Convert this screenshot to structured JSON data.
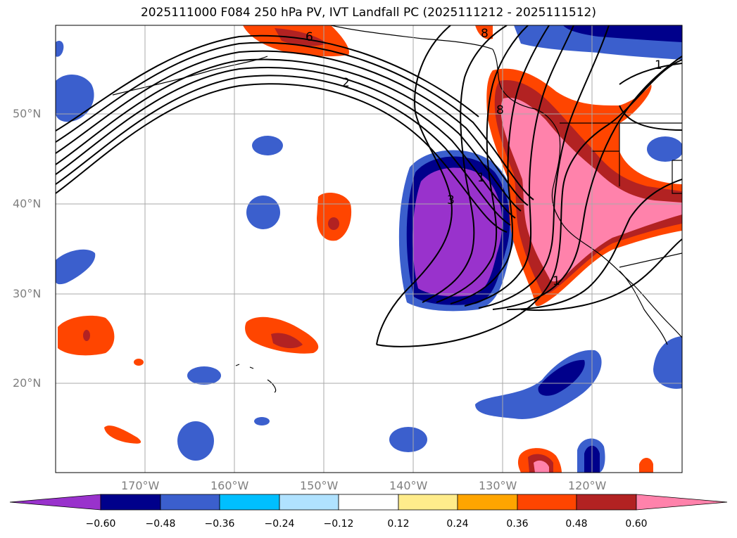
{
  "title": "2025111000 F084 250 hPa PV, IVT Landfall PC (2025111212 - 2025111512)",
  "latitude_labels": [
    "50°N",
    "40°N",
    "30°N",
    "20°N"
  ],
  "longitude_labels": [
    "170°W",
    "160°W",
    "150°W",
    "140°W",
    "130°W",
    "120°W"
  ],
  "contour_labels": [
    "2",
    "1",
    "3",
    "8",
    "1",
    "1",
    "8",
    "6"
  ],
  "colorbar": {
    "tick_labels": [
      "−0.60",
      "−0.48",
      "−0.36",
      "−0.24",
      "−0.12",
      "0.12",
      "0.24",
      "0.36",
      "0.48",
      "0.60"
    ],
    "colors": [
      "#9932cc",
      "#00008b",
      "#3b5fcd",
      "#00bfff",
      "#b0e2ff",
      "#ffffff",
      "#ffec8b",
      "#ffa500",
      "#ff4500",
      "#b22222",
      "#ff82ab"
    ]
  },
  "colors": {
    "neg_strong": "#9932cc",
    "neg_dark": "#00008b",
    "neg_mid": "#3b5fcd",
    "pos_mid": "#ff4500",
    "pos_dark": "#b22222",
    "pos_strong": "#ff82ab"
  }
}
